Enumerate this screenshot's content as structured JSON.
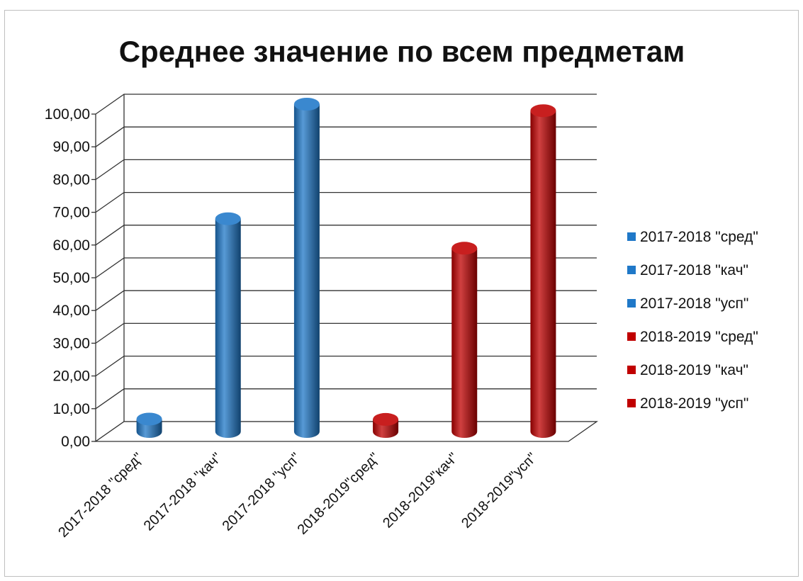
{
  "chart_data": {
    "type": "bar",
    "title": "Среднее значение по всем предметам",
    "categories": [
      "2017-2018 \"сред\"",
      "2017-2018 \"кач\"",
      "2017-2018 \"усп\"",
      "2018-2019\"сред\"",
      "2018-2019\"кач\"",
      "2018-2019\"усп\""
    ],
    "values": [
      3.8,
      65,
      100,
      3.7,
      56,
      98
    ],
    "colors": [
      "#1f78c8",
      "#1f78c8",
      "#1f78c8",
      "#c00000",
      "#c00000",
      "#c00000"
    ],
    "series": [
      {
        "name": "2017-2018  \"сред\"",
        "color": "#1f78c8"
      },
      {
        "name": "2017-2018  \"кач\"",
        "color": "#1f78c8"
      },
      {
        "name": "2017-2018  \"усп\"",
        "color": "#1f78c8"
      },
      {
        "name": "2018-2019 \"сред\"",
        "color": "#c00000"
      },
      {
        "name": "2018-2019 \"кач\"",
        "color": "#c00000"
      },
      {
        "name": "2018-2019 \"усп\"",
        "color": "#c00000"
      }
    ],
    "yticks": [
      "0,00",
      "10,00",
      "20,00",
      "30,00",
      "40,00",
      "50,00",
      "60,00",
      "70,00",
      "80,00",
      "90,00",
      "100,00"
    ],
    "ylim": [
      0,
      100
    ],
    "xlabel": "",
    "ylabel": "",
    "grid": true,
    "legend": "right",
    "style": "3d-cylinder"
  }
}
